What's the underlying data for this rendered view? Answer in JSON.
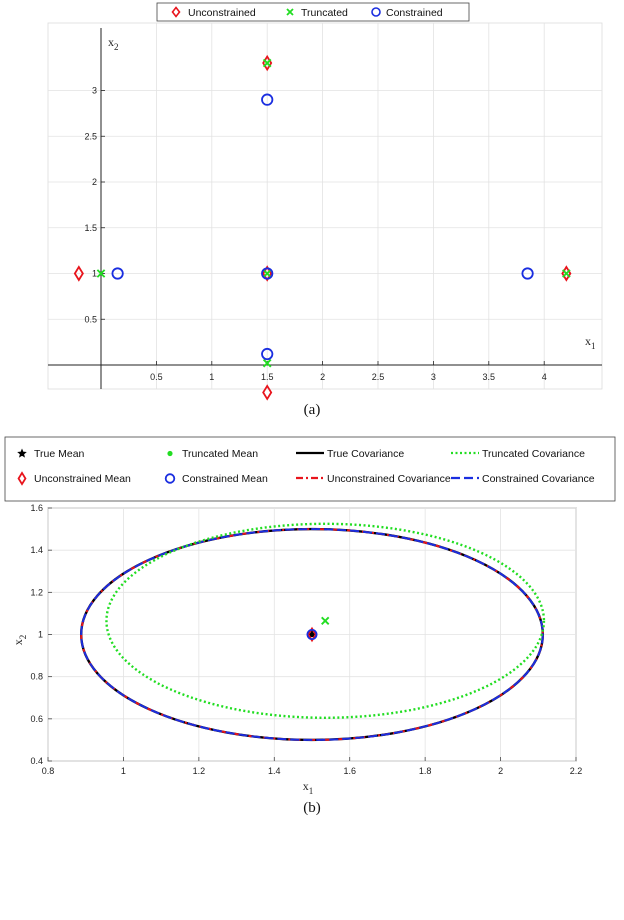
{
  "chart_data": [
    {
      "type": "scatter",
      "caption": "(a)",
      "xlabel": "x",
      "xlabel_sub": "1",
      "ylabel": "x",
      "ylabel_sub": "2",
      "xlim": [
        -0.5,
        4.5
      ],
      "ylim": [
        -0.5,
        3.5
      ],
      "xticks": [
        "0.5",
        "1",
        "1.5",
        "2",
        "2.5",
        "3",
        "3.5",
        "4"
      ],
      "yticks": [
        "0.5",
        "1",
        "1.5",
        "2",
        "2.5",
        "3"
      ],
      "xtick_values": [
        0.5,
        1,
        1.5,
        2,
        2.5,
        3,
        3.5,
        4
      ],
      "ytick_values": [
        0.5,
        1,
        1.5,
        2,
        2.5,
        3
      ],
      "grid": true,
      "legend_position": "top",
      "series": [
        {
          "name": "Unconstrained",
          "marker": "diamond",
          "color": "#e8141c",
          "points": [
            [
              1.5,
              3.3
            ],
            [
              -0.2,
              1.0
            ],
            [
              4.2,
              1.0
            ],
            [
              1.5,
              -0.3
            ],
            [
              1.5,
              1.0
            ]
          ]
        },
        {
          "name": "Truncated",
          "marker": "x",
          "color": "#22dd22",
          "points": [
            [
              1.5,
              3.3
            ],
            [
              0.0,
              1.0
            ],
            [
              4.2,
              1.0
            ],
            [
              1.5,
              0.02
            ],
            [
              1.5,
              1.0
            ]
          ]
        },
        {
          "name": "Constrained",
          "marker": "circle",
          "color": "#1a2ee0",
          "points": [
            [
              1.5,
              2.9
            ],
            [
              0.15,
              1.0
            ],
            [
              3.85,
              1.0
            ],
            [
              1.5,
              0.12
            ],
            [
              1.5,
              1.0
            ]
          ]
        }
      ]
    },
    {
      "type": "line",
      "caption": "(b)",
      "xlabel": "x",
      "xlabel_sub": "1",
      "ylabel": "x",
      "ylabel_sub": "2",
      "xlim": [
        0.8,
        2.2
      ],
      "ylim": [
        0.4,
        1.6
      ],
      "xticks": [
        "0.8",
        "1",
        "1.2",
        "1.4",
        "1.6",
        "1.8",
        "2",
        "2.2"
      ],
      "yticks": [
        "0.4",
        "0.6",
        "0.8",
        "1",
        "1.2",
        "1.4",
        "1.6"
      ],
      "xtick_values": [
        0.8,
        1.0,
        1.2,
        1.4,
        1.6,
        1.8,
        2.0,
        2.2
      ],
      "ytick_values": [
        0.4,
        0.6,
        0.8,
        1.0,
        1.2,
        1.4,
        1.6
      ],
      "grid": true,
      "legend_position": "top",
      "legend": [
        {
          "name": "True Mean",
          "kind": "point-star",
          "color": "#000000"
        },
        {
          "name": "Truncated Mean",
          "kind": "point-dot",
          "color": "#22dd22"
        },
        {
          "name": "True Covariance",
          "kind": "line-solid",
          "color": "#000000"
        },
        {
          "name": "Truncated Covariance",
          "kind": "line-dotted",
          "color": "#22dd22"
        },
        {
          "name": "Unconstrained Mean",
          "kind": "point-diamond",
          "color": "#e8141c"
        },
        {
          "name": "Constrained Mean",
          "kind": "point-circle",
          "color": "#1a2ee0"
        },
        {
          "name": "Unconstrained Covariance",
          "kind": "line-dashdot",
          "color": "#e8141c"
        },
        {
          "name": "Constrained Covariance",
          "kind": "line-dashed",
          "color": "#1a2ee0"
        }
      ],
      "means": [
        {
          "name": "True Mean",
          "x": 1.5,
          "y": 1.0,
          "marker": "star",
          "color": "#000000"
        },
        {
          "name": "Unconstrained Mean",
          "x": 1.5,
          "y": 1.0,
          "marker": "diamond",
          "color": "#e8141c"
        },
        {
          "name": "Constrained Mean",
          "x": 1.5,
          "y": 1.0,
          "marker": "circle",
          "color": "#1a2ee0"
        },
        {
          "name": "Truncated Mean",
          "x": 1.535,
          "y": 1.065,
          "marker": "x",
          "color": "#22dd22"
        }
      ],
      "ellipses": [
        {
          "name": "True Covariance",
          "cx": 1.5,
          "cy": 1.0,
          "rx": 0.612,
          "ry": 0.5,
          "style": "solid",
          "color": "#000000"
        },
        {
          "name": "Unconstrained Covariance",
          "cx": 1.5,
          "cy": 1.0,
          "rx": 0.612,
          "ry": 0.5,
          "style": "dashdot",
          "color": "#e8141c"
        },
        {
          "name": "Constrained Covariance",
          "cx": 1.5,
          "cy": 1.0,
          "rx": 0.612,
          "ry": 0.5,
          "style": "dashed",
          "color": "#1a2ee0"
        },
        {
          "name": "Truncated Covariance",
          "cx": 1.535,
          "cy": 1.065,
          "rx": 0.58,
          "ry": 0.46,
          "style": "dotted",
          "color": "#22dd22"
        }
      ]
    }
  ]
}
